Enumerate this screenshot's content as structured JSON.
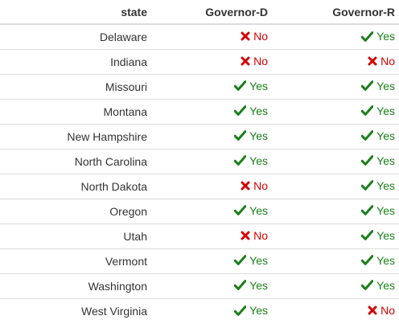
{
  "table": {
    "columns": [
      "state",
      "Governor-D",
      "Governor-R"
    ],
    "rows": [
      {
        "state": "Delaware",
        "gov_d": "No",
        "gov_r": "Yes"
      },
      {
        "state": "Indiana",
        "gov_d": "No",
        "gov_r": "No"
      },
      {
        "state": "Missouri",
        "gov_d": "Yes",
        "gov_r": "Yes"
      },
      {
        "state": "Montana",
        "gov_d": "Yes",
        "gov_r": "Yes"
      },
      {
        "state": "New Hampshire",
        "gov_d": "Yes",
        "gov_r": "Yes"
      },
      {
        "state": "North Carolina",
        "gov_d": "Yes",
        "gov_r": "Yes"
      },
      {
        "state": "North Dakota",
        "gov_d": "No",
        "gov_r": "Yes"
      },
      {
        "state": "Oregon",
        "gov_d": "Yes",
        "gov_r": "Yes"
      },
      {
        "state": "Utah",
        "gov_d": "No",
        "gov_r": "Yes"
      },
      {
        "state": "Vermont",
        "gov_d": "Yes",
        "gov_r": "Yes"
      },
      {
        "state": "Washington",
        "gov_d": "Yes",
        "gov_r": "Yes"
      },
      {
        "state": "West Virginia",
        "gov_d": "Yes",
        "gov_r": "No"
      }
    ]
  },
  "icons": {
    "yes": "check-icon",
    "no": "cross-icon"
  },
  "colors": {
    "yes": "#1a7f1a",
    "no": "#d40000",
    "divider": "#dddddd",
    "text": "#333333"
  }
}
